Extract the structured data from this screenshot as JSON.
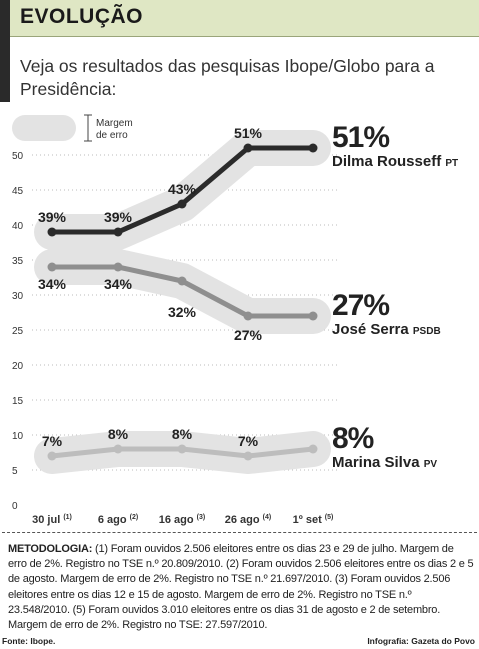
{
  "header": {
    "title": "EVOLUÇÃO"
  },
  "subtitle": "Veja os resultados das pesquisas Ibope/Globo para a Presidência:",
  "legend": {
    "label": "Margem de erro"
  },
  "chart_data": {
    "type": "line",
    "categories": [
      "30 jul",
      "6 ago",
      "16 ago",
      "26 ago",
      "1º set"
    ],
    "category_notes": [
      "(1)",
      "(2)",
      "(3)",
      "(4)",
      "(5)"
    ],
    "yticks": [
      0,
      5,
      10,
      15,
      20,
      25,
      30,
      35,
      40,
      45,
      50
    ],
    "ylim": [
      0,
      55
    ],
    "margin_of_error": 2,
    "series": [
      {
        "name": "Dilma Rousseff",
        "party": "PT",
        "final_label": "51%",
        "values": [
          39,
          39,
          43,
          51,
          51
        ],
        "point_labels": [
          "39%",
          "39%",
          "43%",
          "51%"
        ],
        "line_color": "#2b2b2b"
      },
      {
        "name": "José Serra",
        "party": "PSDB",
        "final_label": "27%",
        "values": [
          34,
          34,
          32,
          27,
          27
        ],
        "point_labels": [
          "34%",
          "34%",
          "32%",
          "27%"
        ],
        "line_color": "#8f8f8f"
      },
      {
        "name": "Marina Silva",
        "party": "PV",
        "final_label": "8%",
        "values": [
          7,
          8,
          8,
          7,
          8
        ],
        "point_labels": [
          "7%",
          "8%",
          "8%",
          "7%"
        ],
        "line_color": "#bdbdbd"
      }
    ],
    "band_color": "#e3e3e3"
  },
  "methodology": {
    "label": "METODOLOGIA:",
    "text": " (1) Foram ouvidos 2.506 eleitores entre os dias 23 e 29 de julho. Margem de erro de 2%. Registro no TSE n.º 20.809/2010. (2) Foram ouvidos 2.506 eleitores entre os dias 2 e 5 de agosto. Margem de erro de 2%. Registro no TSE n.º 21.697/2010. (3) Foram ouvidos 2.506 eleitores entre os dias 12 e 15 de agosto. Margem de erro de 2%. Registro no TSE n.º 23.548/2010. (5) Foram ouvidos 3.010 eleitores entre os dias 31 de agosto e 2 de setembro. Margem de erro de 2%. Registro no TSE: 27.597/2010."
  },
  "footer": {
    "source": "Fonte: Ibope.",
    "credit": "Infografia: Gazeta do Povo"
  }
}
